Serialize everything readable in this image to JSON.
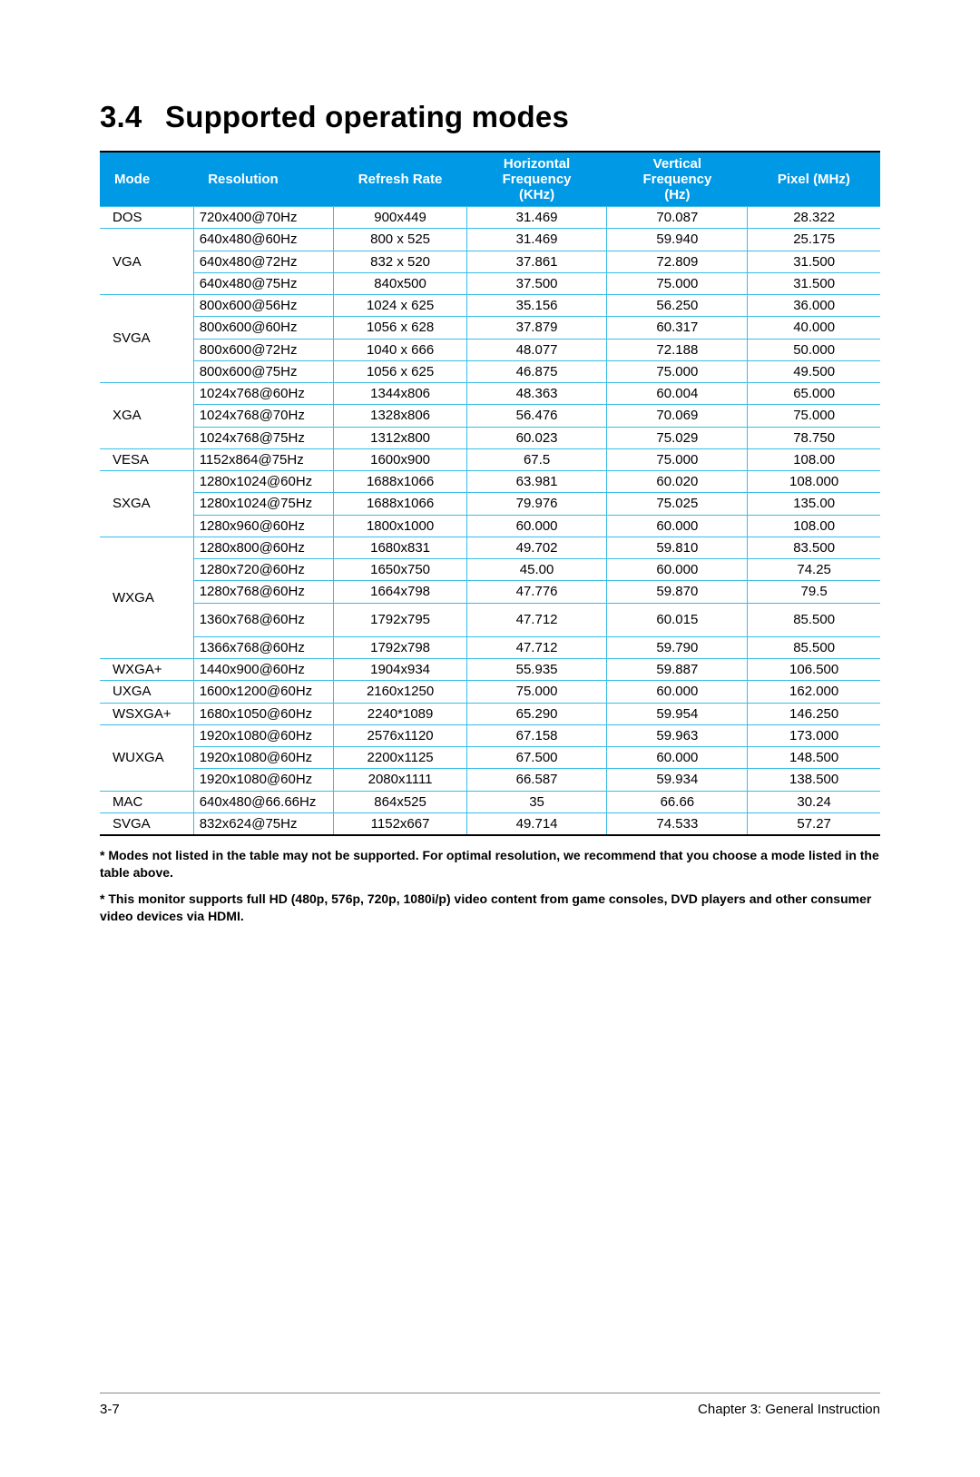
{
  "page": {
    "section_number": "3.4",
    "title": "Supported operating modes",
    "footer_left": "3-7",
    "footer_right": "Chapter 3: General Instruction"
  },
  "colors": {
    "header_bg": "#0099e6",
    "header_fg": "#ffffff",
    "row_border": "#39bde6",
    "text": "#000000",
    "background": "#ffffff",
    "footer_rule": "#888888"
  },
  "table": {
    "columns": [
      {
        "key": "mode",
        "label": "Mode",
        "align": "left"
      },
      {
        "key": "resolution",
        "label": "Resolution",
        "align": "left"
      },
      {
        "key": "refresh_rate",
        "label": "Refresh Rate",
        "align": "center"
      },
      {
        "key": "hfreq",
        "label": "Horizontal Frequency (KHz)",
        "align": "center"
      },
      {
        "key": "vfreq",
        "label": "Vertical Frequency (Hz)",
        "align": "center"
      },
      {
        "key": "pixel",
        "label": "Pixel (MHz)",
        "align": "center"
      }
    ],
    "mode_groups": [
      {
        "mode": "DOS",
        "rows": [
          {
            "resolution": "720x400@70Hz",
            "rate": "900x449",
            "hf": "31.469",
            "vf": "70.087",
            "px": "28.322"
          }
        ]
      },
      {
        "mode": "VGA",
        "rows": [
          {
            "resolution": "640x480@60Hz",
            "rate": "800 x 525",
            "hf": "31.469",
            "vf": "59.940",
            "px": "25.175"
          },
          {
            "resolution": "640x480@72Hz",
            "rate": "832 x 520",
            "hf": "37.861",
            "vf": "72.809",
            "px": "31.500"
          },
          {
            "resolution": "640x480@75Hz",
            "rate": "840x500",
            "hf": "37.500",
            "vf": "75.000",
            "px": "31.500"
          }
        ]
      },
      {
        "mode": "SVGA",
        "rows": [
          {
            "resolution": "800x600@56Hz",
            "rate": "1024 x 625",
            "hf": "35.156",
            "vf": "56.250",
            "px": "36.000"
          },
          {
            "resolution": "800x600@60Hz",
            "rate": "1056 x 628",
            "hf": "37.879",
            "vf": "60.317",
            "px": "40.000"
          },
          {
            "resolution": "800x600@72Hz",
            "rate": "1040 x 666",
            "hf": "48.077",
            "vf": "72.188",
            "px": "50.000"
          },
          {
            "resolution": "800x600@75Hz",
            "rate": "1056 x 625",
            "hf": "46.875",
            "vf": "75.000",
            "px": "49.500"
          }
        ]
      },
      {
        "mode": "XGA",
        "rows": [
          {
            "resolution": "1024x768@60Hz",
            "rate": "1344x806",
            "hf": "48.363",
            "vf": "60.004",
            "px": "65.000"
          },
          {
            "resolution": "1024x768@70Hz",
            "rate": "1328x806",
            "hf": "56.476",
            "vf": "70.069",
            "px": "75.000"
          },
          {
            "resolution": "1024x768@75Hz",
            "rate": "1312x800",
            "hf": "60.023",
            "vf": "75.029",
            "px": "78.750"
          }
        ]
      },
      {
        "mode": "VESA",
        "rows": [
          {
            "resolution": "1152x864@75Hz",
            "rate": "1600x900",
            "hf": "67.5",
            "vf": "75.000",
            "px": "108.00"
          }
        ]
      },
      {
        "mode": "SXGA",
        "rows": [
          {
            "resolution": "1280x1024@60Hz",
            "rate": "1688x1066",
            "hf": "63.981",
            "vf": "60.020",
            "px": "108.000"
          },
          {
            "resolution": "1280x1024@75Hz",
            "rate": "1688x1066",
            "hf": "79.976",
            "vf": "75.025",
            "px": "135.00"
          },
          {
            "resolution": "1280x960@60Hz",
            "rate": "1800x1000",
            "hf": "60.000",
            "vf": "60.000",
            "px": "108.00"
          }
        ]
      },
      {
        "mode": "WXGA",
        "rows": [
          {
            "resolution": "1280x800@60Hz",
            "rate": "1680x831",
            "hf": "49.702",
            "vf": "59.810",
            "px": "83.500"
          },
          {
            "resolution": "1280x720@60Hz",
            "rate": "1650x750",
            "hf": "45.00",
            "vf": "60.000",
            "px": "74.25"
          },
          {
            "resolution": "1280x768@60Hz",
            "rate": "1664x798",
            "hf": "47.776",
            "vf": "59.870",
            "px": "79.5"
          },
          {
            "resolution": "1360x768@60Hz",
            "rate": "1792x795",
            "hf": "47.712",
            "vf": "60.015",
            "px": "85.500",
            "tall": true
          },
          {
            "resolution": "1366x768@60Hz",
            "rate": "1792x798",
            "hf": "47.712",
            "vf": "59.790",
            "px": "85.500"
          }
        ]
      },
      {
        "mode": "WXGA+",
        "rows": [
          {
            "resolution": "1440x900@60Hz",
            "rate": "1904x934",
            "hf": "55.935",
            "vf": "59.887",
            "px": "106.500"
          }
        ]
      },
      {
        "mode": "UXGA",
        "rows": [
          {
            "resolution": "1600x1200@60Hz",
            "rate": "2160x1250",
            "hf": "75.000",
            "vf": "60.000",
            "px": "162.000"
          }
        ]
      },
      {
        "mode": "WSXGA+",
        "rows": [
          {
            "resolution": "1680x1050@60Hz",
            "rate": "2240*1089",
            "hf": "65.290",
            "vf": "59.954",
            "px": "146.250"
          }
        ]
      },
      {
        "mode": "WUXGA",
        "rows": [
          {
            "resolution": "1920x1080@60Hz",
            "rate": "2576x1120",
            "hf": "67.158",
            "vf": "59.963",
            "px": "173.000"
          },
          {
            "resolution": "1920x1080@60Hz",
            "rate": "2200x1125",
            "hf": "67.500",
            "vf": "60.000",
            "px": "148.500"
          },
          {
            "resolution": "1920x1080@60Hz",
            "rate": "2080x1111",
            "hf": "66.587",
            "vf": "59.934",
            "px": "138.500"
          }
        ]
      },
      {
        "mode": "MAC",
        "rows": [
          {
            "resolution": "640x480@66.66Hz",
            "rate": "864x525",
            "hf": "35",
            "vf": "66.66",
            "px": "30.24"
          }
        ]
      },
      {
        "mode": "SVGA",
        "rows": [
          {
            "resolution": "832x624@75Hz",
            "rate": "1152x667",
            "hf": "49.714",
            "vf": "74.533",
            "px": "57.27"
          }
        ]
      }
    ]
  },
  "notes": [
    "* Modes not listed in the table may not be supported. For optimal resolution, we recommend that you choose a mode listed in the table above.",
    "* This monitor supports full HD (480p, 576p, 720p, 1080i/p) video content from game consoles, DVD players and other consumer video devices via HDMI."
  ]
}
